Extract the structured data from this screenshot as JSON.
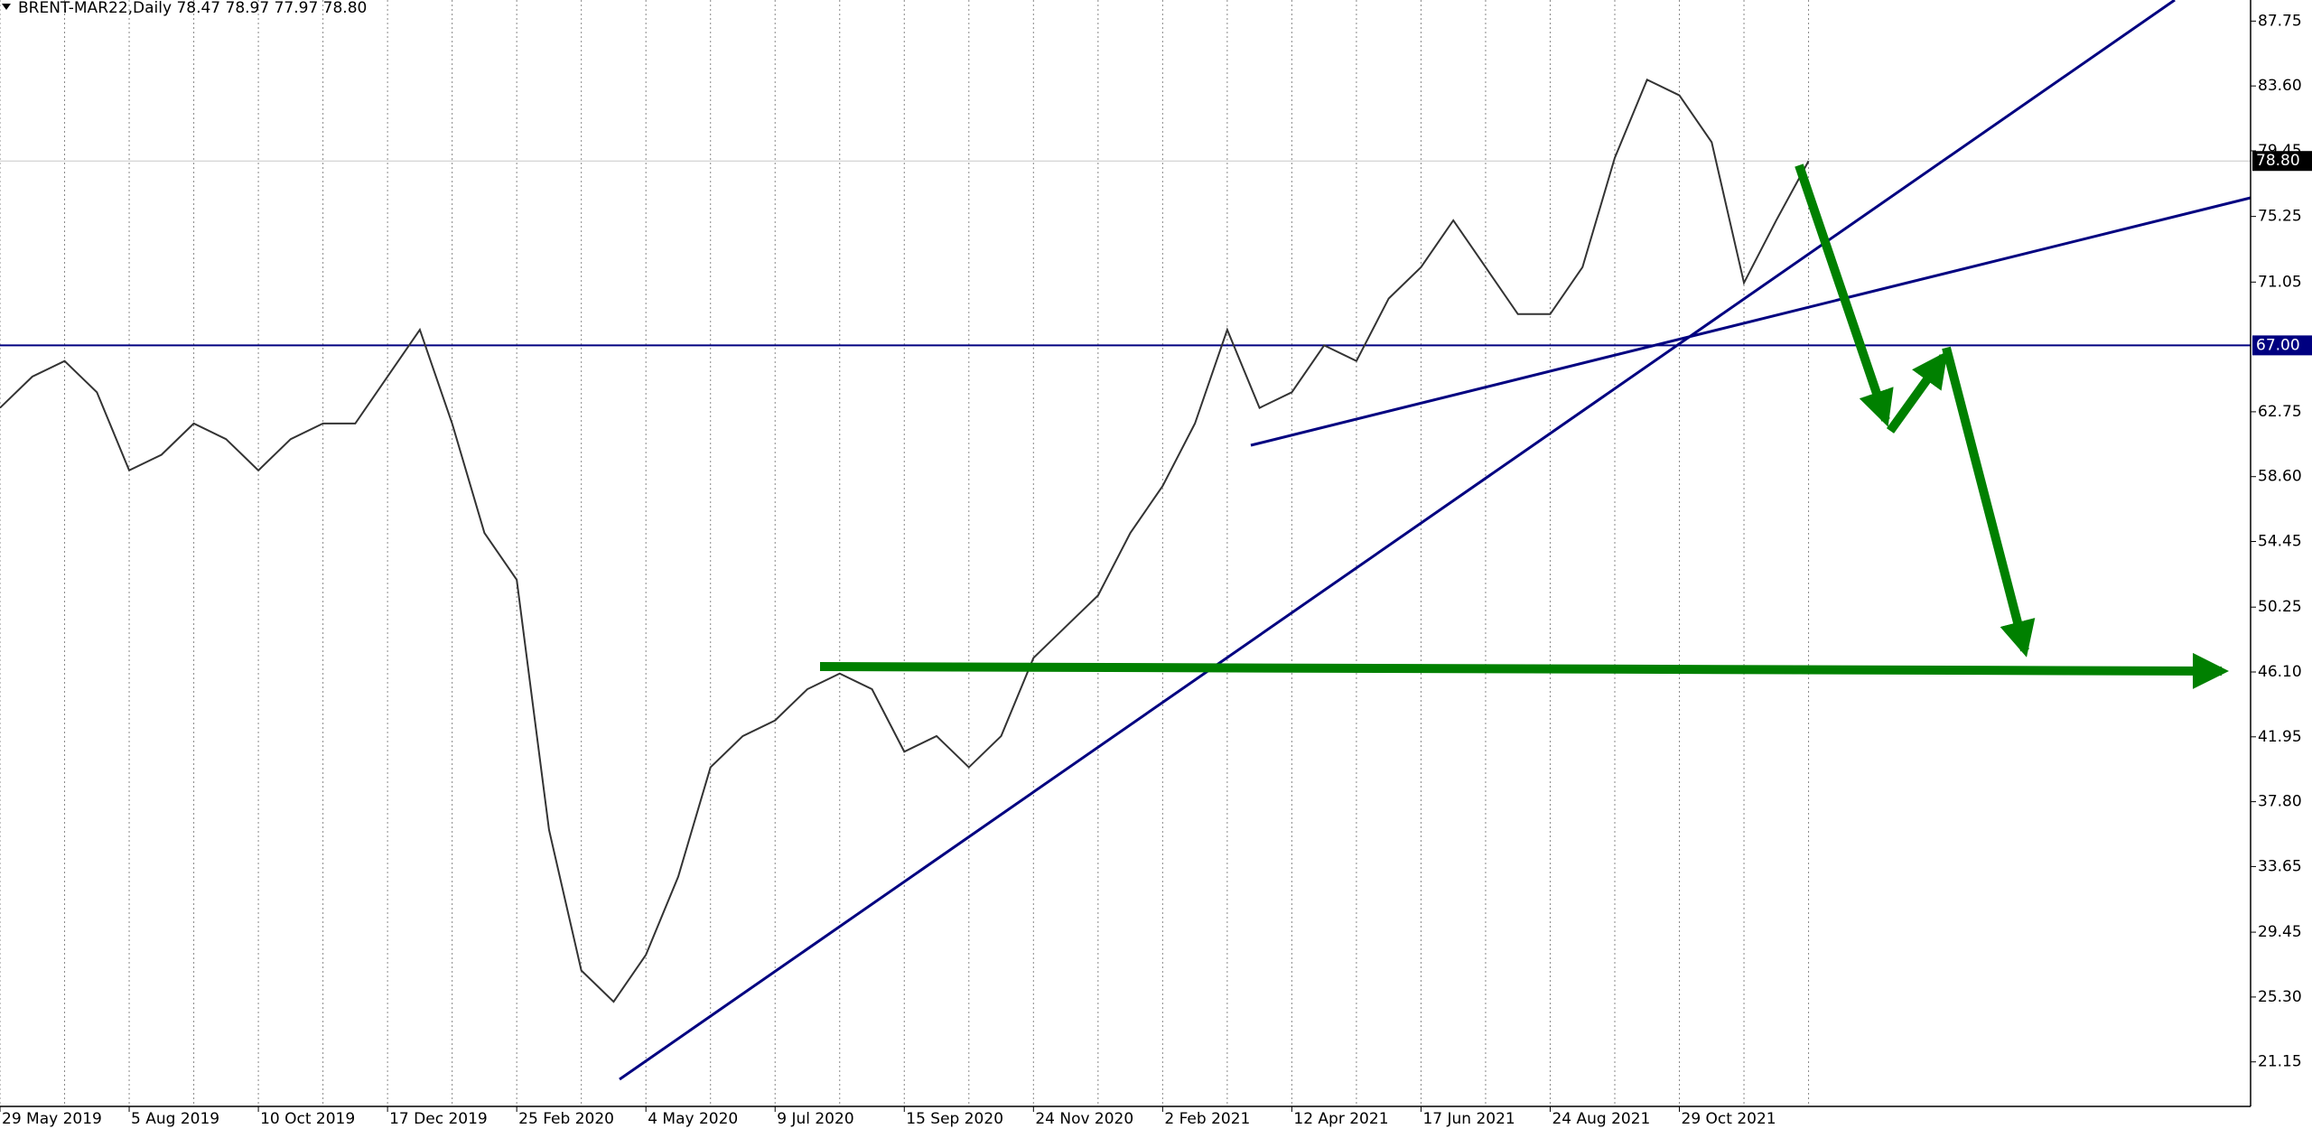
{
  "chart_data": {
    "type": "line",
    "title": "BRENT-MAR22,Daily  78.47 78.97 77.97 78.80",
    "categories": [
      "29 May 2019",
      null,
      null,
      null,
      "5 Aug 2019",
      null,
      null,
      null,
      "10 Oct 2019",
      null,
      null,
      null,
      "17 Dec 2019",
      null,
      null,
      null,
      "25 Feb 2020",
      null,
      null,
      null,
      "4 May 2020",
      null,
      null,
      null,
      "9 Jul 2020",
      null,
      null,
      null,
      "15 Sep 2020",
      null,
      null,
      null,
      "24 Nov 2020",
      null,
      null,
      null,
      "2 Feb 2021",
      null,
      null,
      null,
      "12 Apr 2021",
      null,
      null,
      null,
      "17 Jun 2021",
      null,
      null,
      null,
      "24 Aug 2021",
      null,
      null,
      null,
      "29 Oct 2021",
      null,
      null,
      null,
      null
    ],
    "series": [
      {
        "name": "BRENT-MAR22",
        "color": "#333333",
        "values": [
          63,
          65,
          66,
          64,
          59,
          60,
          62,
          61,
          59,
          61,
          62,
          62,
          65,
          68,
          62,
          55,
          52,
          36,
          27,
          25,
          28,
          33,
          40,
          42,
          43,
          45,
          46,
          45,
          41,
          42,
          40,
          42,
          47,
          49,
          51,
          55,
          58,
          62,
          68,
          63,
          64,
          67,
          66,
          70,
          72,
          75,
          72,
          69,
          69,
          72,
          79,
          84,
          83,
          80,
          71,
          75,
          78.8
        ]
      }
    ],
    "ylim": [
      18.3,
      89.1
    ],
    "yticks": [
      87.75,
      {
        "value": 83.6,
        "label": "83.60"
      },
      79.45,
      75.25,
      71.05,
      62.75,
      {
        "value": 58.6,
        "label": "58.60"
      },
      54.45,
      50.25,
      {
        "value": 46.1,
        "label": "46.10"
      },
      41.95,
      {
        "value": 37.8,
        "label": "37.80"
      },
      33.65,
      29.45,
      {
        "value": 25.3,
        "label": "25.30"
      },
      21.15
    ],
    "levels": [
      {
        "value": 67,
        "label": "67.00",
        "color": "#000080"
      },
      {
        "value": 78.8,
        "label": "78.80",
        "color": "#000000"
      }
    ],
    "grid": true
  }
}
